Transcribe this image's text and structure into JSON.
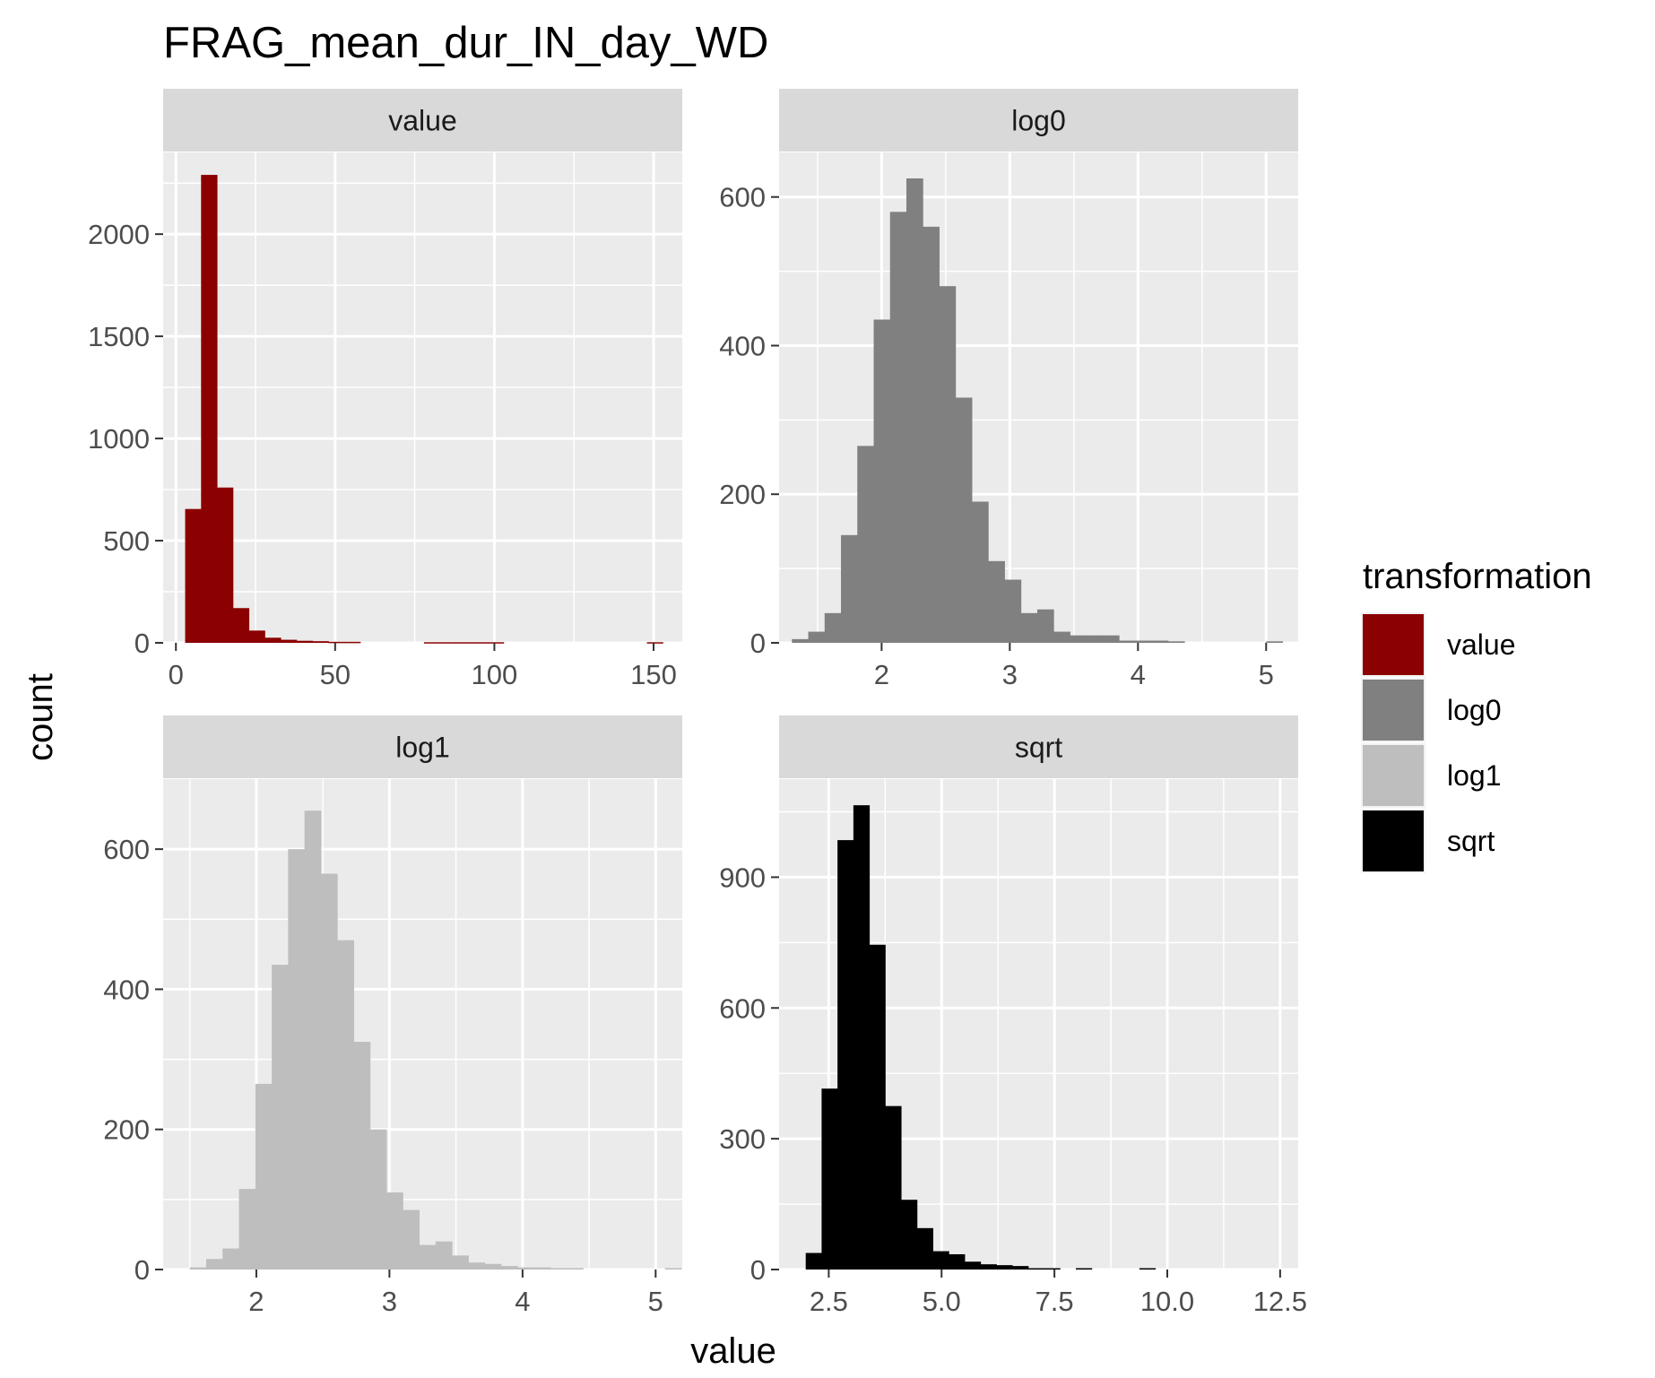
{
  "chart_data": {
    "type": "bar",
    "title": "FRAG_mean_dur_IN_day_WD",
    "xlabel": "value",
    "ylabel": "count",
    "grid": true,
    "legend": {
      "title": "transformation",
      "placement": "right",
      "entries": [
        {
          "label": "value",
          "color": "#8B0000"
        },
        {
          "label": "log0",
          "color": "#808080"
        },
        {
          "label": "log1",
          "color": "#BEBEBE"
        },
        {
          "label": "sqrt",
          "color": "#000000"
        }
      ]
    },
    "panels": [
      {
        "strip": "value",
        "color": "#8B0000",
        "xlim": [
          -4,
          159
        ],
        "ylim": [
          0,
          2400
        ],
        "xticks": [
          0,
          50,
          100,
          150
        ],
        "xtick_labels": [
          "0",
          "50",
          "100",
          "150"
        ],
        "xminor": [
          25,
          75,
          125
        ],
        "yticks": [
          0,
          500,
          1000,
          1500,
          2000
        ],
        "ytick_labels": [
          "0",
          "500",
          "1000",
          "1500",
          "2000"
        ],
        "yminor": [
          250,
          750,
          1250,
          1750,
          2250
        ],
        "bin_start": 2.9,
        "bin_width": 5.0,
        "values": [
          655,
          2290,
          760,
          170,
          60,
          25,
          15,
          10,
          8,
          5,
          5,
          0,
          0,
          0,
          0,
          3,
          3,
          3,
          3,
          3,
          0,
          0,
          0,
          0,
          0,
          0,
          0,
          0,
          0,
          3
        ]
      },
      {
        "strip": "log0",
        "color": "#808080",
        "xlim": [
          1.2,
          5.25
        ],
        "ylim": [
          0,
          660
        ],
        "xticks": [
          2,
          3,
          4,
          5
        ],
        "xtick_labels": [
          "2",
          "3",
          "4",
          "5"
        ],
        "xminor": [
          1.5,
          2.5,
          3.5,
          4.5
        ],
        "yticks": [
          0,
          200,
          400,
          600
        ],
        "ytick_labels": [
          "0",
          "200",
          "400",
          "600"
        ],
        "yminor": [
          100,
          300,
          500
        ],
        "bin_start": 1.3,
        "bin_width": 0.1276,
        "values": [
          5,
          15,
          40,
          145,
          265,
          435,
          580,
          625,
          560,
          480,
          330,
          190,
          110,
          85,
          40,
          45,
          15,
          10,
          10,
          10,
          3,
          3,
          3,
          2,
          0,
          0,
          0,
          0,
          0,
          2
        ]
      },
      {
        "strip": "log1",
        "color": "#BEBEBE",
        "xlim": [
          1.3,
          5.2
        ],
        "ylim": [
          0,
          700
        ],
        "xticks": [
          2,
          3,
          4,
          5
        ],
        "xtick_labels": [
          "2",
          "3",
          "4",
          "5"
        ],
        "xminor": [
          1.5,
          2.5,
          3.5,
          4.5
        ],
        "yticks": [
          0,
          200,
          400,
          600
        ],
        "ytick_labels": [
          "0",
          "200",
          "400",
          "600"
        ],
        "yminor": [
          100,
          300,
          500
        ],
        "bin_start": 1.5,
        "bin_width": 0.1231,
        "values": [
          3,
          15,
          30,
          115,
          265,
          435,
          600,
          655,
          565,
          470,
          325,
          200,
          110,
          85,
          35,
          40,
          20,
          10,
          8,
          5,
          3,
          3,
          2,
          2,
          0,
          0,
          0,
          0,
          0,
          2
        ]
      },
      {
        "strip": "sqrt",
        "color": "#000000",
        "xlim": [
          1.4,
          12.9
        ],
        "ylim": [
          0,
          1125
        ],
        "xticks": [
          2.5,
          5.0,
          7.5,
          10.0,
          12.5
        ],
        "xtick_labels": [
          "2.5",
          "5.0",
          "7.5",
          "10.0",
          "12.5"
        ],
        "xminor": [
          3.75,
          6.25,
          8.75,
          11.25
        ],
        "yticks": [
          0,
          300,
          600,
          900
        ],
        "ytick_labels": [
          "0",
          "300",
          "600",
          "900"
        ],
        "yminor": [
          150,
          450,
          750,
          1050
        ],
        "bin_start": 1.99,
        "bin_width": 0.352,
        "values": [
          38,
          415,
          985,
          1065,
          745,
          375,
          160,
          95,
          42,
          35,
          18,
          12,
          10,
          8,
          3,
          3,
          0,
          3,
          0,
          0,
          0,
          3,
          0,
          0,
          0,
          0,
          0,
          0,
          0,
          0
        ]
      }
    ]
  }
}
